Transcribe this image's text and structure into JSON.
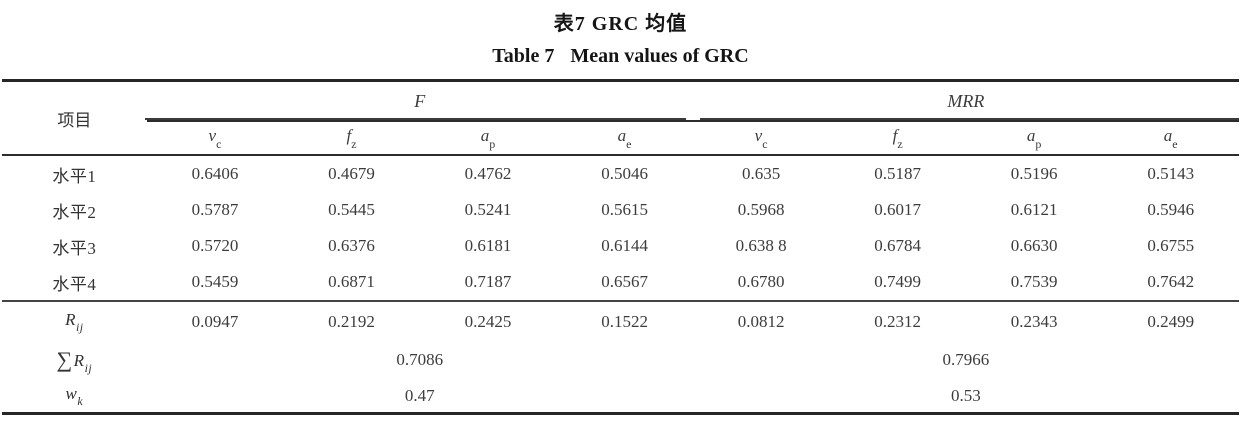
{
  "page": {
    "title_zh": "表7 GRC 均值",
    "title_en": {
      "label": "Table 7",
      "text": "Mean values of GRC"
    }
  },
  "table": {
    "item_header": "项目",
    "groups": [
      {
        "label": "F"
      },
      {
        "label": "MRR"
      }
    ],
    "subcols": [
      {
        "base": "v",
        "sub": "c"
      },
      {
        "base": "f",
        "sub": "z"
      },
      {
        "base": "a",
        "sub": "p"
      },
      {
        "base": "a",
        "sub": "e"
      }
    ],
    "rows": [
      {
        "label": "水平1",
        "values": [
          "0.6406",
          "0.4679",
          "0.4762",
          "0.5046",
          "0.635",
          "0.5187",
          "0.5196",
          "0.5143"
        ]
      },
      {
        "label": "水平2",
        "values": [
          "0.5787",
          "0.5445",
          "0.5241",
          "0.5615",
          "0.5968",
          "0.6017",
          "0.6121",
          "0.5946"
        ]
      },
      {
        "label": "水平3",
        "values": [
          "0.5720",
          "0.6376",
          "0.6181",
          "0.6144",
          "0.638 8",
          "0.6784",
          "0.6630",
          "0.6755"
        ]
      },
      {
        "label": "水平4",
        "values": [
          "0.5459",
          "0.6871",
          "0.7187",
          "0.6567",
          "0.6780",
          "0.7499",
          "0.7539",
          "0.7642"
        ]
      }
    ],
    "r_row": {
      "label": {
        "base": "R",
        "sub": "ij"
      },
      "values": [
        "0.0947",
        "0.2192",
        "0.2425",
        "0.1522",
        "0.0812",
        "0.2312",
        "0.2343",
        "0.2499"
      ]
    },
    "sum_row": {
      "label": {
        "sigma": "∑",
        "base": "R",
        "sub": "ij"
      },
      "values": [
        "0.7086",
        "0.7966"
      ]
    },
    "w_row": {
      "label": {
        "base": "w",
        "sub": "k"
      },
      "values": [
        "0.47",
        "0.53"
      ]
    }
  }
}
